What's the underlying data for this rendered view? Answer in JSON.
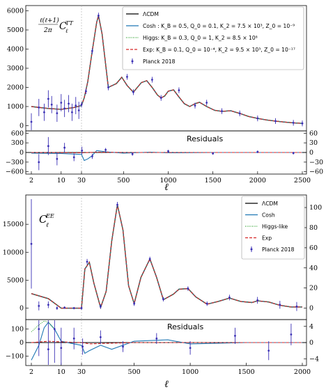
{
  "chart_data": [
    {
      "type": "line",
      "panel": "TT spectrum",
      "ylabel": "ℓ(ℓ+1)/2π C_ℓ^TT",
      "xlabel": "ℓ",
      "ylim": [
        -200,
        6200
      ],
      "yticks": [
        "0",
        "1000",
        "2000",
        "3000",
        "4000",
        "5000",
        "6000"
      ],
      "xticks": [
        "2",
        "10",
        "30",
        "500",
        "1000",
        "1500",
        "2000",
        "2500"
      ],
      "x_axis": "log-scale below ℓ=30, linear ℓ=30–2500",
      "legend_position": "top-right",
      "legend": [
        {
          "label": "ΛCDM",
          "style": "solid",
          "color": "#000000"
        },
        {
          "label": "Cosh : K_B = 0.5, Q_0 = 0.1, K_2 = 7.5 × 10³, Z_0 = 10⁻⁹",
          "style": "solid",
          "color": "#1f77b4"
        },
        {
          "label": "Higgs: K_B = 0.3, Q_0 = 1, K_2 = 8.5 × 10⁸",
          "style": "dotted",
          "color": "#2ca02c"
        },
        {
          "label": "Exp: K_B = 0.1, Q_0 = 10⁻⁴, K_2 = 9.5 × 10³, Z_0 = 10⁻¹⁷",
          "style": "dashed",
          "color": "#d62728"
        },
        {
          "label": "Planck 2018",
          "style": "errorbar",
          "color": "#3a2fb5"
        }
      ],
      "model_curve": {
        "x": [
          2,
          5,
          10,
          20,
          30,
          60,
          100,
          150,
          200,
          220,
          260,
          330,
          420,
          480,
          540,
          610,
          700,
          760,
          820,
          880,
          920,
          960,
          1000,
          1060,
          1120,
          1180,
          1240,
          1300,
          1350,
          1430,
          1520,
          1600,
          1700,
          1800,
          1900,
          2000,
          2100,
          2200,
          2300,
          2400,
          2500
        ],
        "y": [
          1000,
          900,
          850,
          950,
          1050,
          1450,
          2300,
          3900,
          5400,
          5750,
          4800,
          2000,
          2200,
          2530,
          2100,
          1750,
          2250,
          2350,
          2000,
          1600,
          1450,
          1550,
          1800,
          1870,
          1500,
          1150,
          1000,
          1150,
          1220,
          1000,
          800,
          750,
          780,
          640,
          480,
          380,
          300,
          240,
          190,
          150,
          120
        ]
      },
      "data_points": [
        {
          "x": 2,
          "y": 200
        },
        {
          "x": 3,
          "y": 950
        },
        {
          "x": 4,
          "y": 700
        },
        {
          "x": 5,
          "y": 1400
        },
        {
          "x": 6,
          "y": 1100
        },
        {
          "x": 8,
          "y": 650
        },
        {
          "x": 10,
          "y": 1200
        },
        {
          "x": 12,
          "y": 900
        },
        {
          "x": 15,
          "y": 1150
        },
        {
          "x": 18,
          "y": 700
        },
        {
          "x": 22,
          "y": 1050
        },
        {
          "x": 26,
          "y": 800
        },
        {
          "x": 30,
          "y": 1100
        },
        {
          "x": 80,
          "y": 1800
        },
        {
          "x": 150,
          "y": 3900
        },
        {
          "x": 220,
          "y": 5750
        },
        {
          "x": 330,
          "y": 2000
        },
        {
          "x": 540,
          "y": 2550
        },
        {
          "x": 610,
          "y": 1750
        },
        {
          "x": 820,
          "y": 2400
        },
        {
          "x": 920,
          "y": 1450
        },
        {
          "x": 1120,
          "y": 1850
        },
        {
          "x": 1300,
          "y": 1050
        },
        {
          "x": 1430,
          "y": 1200
        },
        {
          "x": 1600,
          "y": 760
        },
        {
          "x": 1800,
          "y": 640
        },
        {
          "x": 2000,
          "y": 380
        },
        {
          "x": 2200,
          "y": 240
        },
        {
          "x": 2400,
          "y": 150
        },
        {
          "x": 2500,
          "y": 120
        }
      ]
    },
    {
      "type": "line",
      "panel": "TT residuals",
      "title": "Residuals",
      "ylim": [
        -650,
        650
      ],
      "yticks_left": [
        "600",
        "300",
        "0",
        "−300",
        "−600"
      ],
      "yticks_right": [
        "60",
        "30",
        "0",
        "−30",
        "−60"
      ],
      "xticks": [
        "2",
        "10",
        "30",
        "500",
        "1000",
        "1500",
        "2000",
        "2500"
      ],
      "cosh_residual": {
        "x": [
          2,
          10,
          30,
          60,
          100,
          150,
          200,
          300,
          500,
          800,
          1000,
          1500,
          2000,
          2500
        ],
        "y": [
          -20,
          -30,
          -60,
          -250,
          -200,
          -100,
          60,
          20,
          -20,
          10,
          -10,
          0,
          0,
          0
        ]
      },
      "exp_residual": {
        "x": [
          2,
          30,
          200,
          500,
          1000,
          2500
        ],
        "y": [
          0,
          -10,
          10,
          0,
          0,
          0
        ]
      },
      "data_points": [
        {
          "x": 3,
          "y": -300,
          "e": 250
        },
        {
          "x": 5,
          "y": 200,
          "e": 280
        },
        {
          "x": 8,
          "y": -200,
          "e": 200
        },
        {
          "x": 12,
          "y": 150,
          "e": 150
        },
        {
          "x": 20,
          "y": -150,
          "e": 120
        },
        {
          "x": 35,
          "y": 60,
          "e": 120
        },
        {
          "x": 150,
          "y": -120,
          "e": 80
        },
        {
          "x": 300,
          "y": 80,
          "e": 60
        },
        {
          "x": 600,
          "y": -50,
          "e": 50
        },
        {
          "x": 1000,
          "y": 40,
          "e": 40
        },
        {
          "x": 1500,
          "y": -30,
          "e": 40
        },
        {
          "x": 2000,
          "y": 20,
          "e": 40
        },
        {
          "x": 2400,
          "y": -20,
          "e": 40
        }
      ]
    },
    {
      "type": "line",
      "panel": "EE spectrum",
      "ylabel": "C_ℓ^EE",
      "xlabel": "ℓ",
      "ylim": [
        -1800,
        20000
      ],
      "yticks": [
        "0",
        "5000",
        "10000",
        "15000"
      ],
      "yticks_right": [
        "0",
        "20",
        "40",
        "60",
        "80",
        "100"
      ],
      "xticks": [
        "2",
        "10",
        "30",
        "500",
        "1000",
        "1500",
        "2000"
      ],
      "legend_position": "top-right",
      "legend": [
        {
          "label": "ΛCDM",
          "style": "solid",
          "color": "#000000"
        },
        {
          "label": "Cosh",
          "style": "solid",
          "color": "#1f77b4"
        },
        {
          "label": "Higgs-like",
          "style": "dotted",
          "color": "#2ca02c"
        },
        {
          "label": "Exp",
          "style": "dashed",
          "color": "#d62728"
        },
        {
          "label": "Planck 2018",
          "style": "errorbar",
          "color": "#3a2fb5"
        }
      ],
      "model_curve": {
        "x": [
          2,
          5,
          10,
          20,
          30,
          60,
          100,
          140,
          200,
          250,
          300,
          350,
          400,
          450,
          500,
          560,
          640,
          700,
          760,
          850,
          900,
          980,
          1050,
          1150,
          1250,
          1350,
          1450,
          1550,
          1600,
          1700,
          1800,
          1900,
          2000
        ],
        "y": [
          2600,
          1700,
          0,
          0,
          0,
          7000,
          8200,
          4500,
          100,
          3000,
          12000,
          18500,
          14000,
          4000,
          800,
          5500,
          8800,
          5500,
          1500,
          2500,
          3400,
          3500,
          2000,
          700,
          1200,
          1800,
          1200,
          1000,
          1300,
          1100,
          500,
          200,
          200
        ]
      },
      "data_points": [
        {
          "x": 2,
          "y": 11500,
          "e": 8000
        },
        {
          "x": 3,
          "y": 400,
          "e": 800
        },
        {
          "x": 5,
          "y": 600,
          "e": 600
        },
        {
          "x": 8,
          "y": 0,
          "e": 300
        },
        {
          "x": 12,
          "y": 100,
          "e": 200
        },
        {
          "x": 20,
          "y": 0,
          "e": 200
        },
        {
          "x": 30,
          "y": 0,
          "e": 300
        },
        {
          "x": 80,
          "y": 8300,
          "e": 500
        },
        {
          "x": 200,
          "y": 300,
          "e": 400
        },
        {
          "x": 350,
          "y": 18500,
          "e": 500
        },
        {
          "x": 500,
          "y": 800,
          "e": 400
        },
        {
          "x": 640,
          "y": 8800,
          "e": 400
        },
        {
          "x": 760,
          "y": 1600,
          "e": 400
        },
        {
          "x": 980,
          "y": 3500,
          "e": 400
        },
        {
          "x": 1150,
          "y": 800,
          "e": 400
        },
        {
          "x": 1350,
          "y": 1900,
          "e": 500
        },
        {
          "x": 1600,
          "y": 1400,
          "e": 600
        },
        {
          "x": 1800,
          "y": 600,
          "e": 700
        },
        {
          "x": 1950,
          "y": 300,
          "e": 800
        }
      ]
    },
    {
      "type": "line",
      "panel": "EE residuals",
      "title": "Residuals",
      "ylim": [
        -160,
        160
      ],
      "yticks_left": [
        "100",
        "0",
        "−100"
      ],
      "yticks_right": [
        "4",
        "0",
        "−4"
      ],
      "xticks": [
        "2",
        "10",
        "30",
        "500",
        "1000",
        "1500",
        "2000"
      ],
      "higgs_residual": {
        "x": [
          2,
          3,
          4,
          5,
          7
        ],
        "y": [
          80,
          130,
          160,
          150,
          100
        ]
      },
      "cosh_residual": {
        "x": [
          2,
          3,
          4,
          5,
          7,
          10,
          20,
          30,
          60,
          100,
          200,
          300,
          500,
          800,
          1000,
          1500,
          2000
        ],
        "y": [
          -130,
          -20,
          110,
          150,
          100,
          10,
          -10,
          -20,
          -80,
          -60,
          -20,
          -50,
          10,
          20,
          -10,
          0,
          0
        ]
      },
      "exp_residual": {
        "x": [
          2,
          5,
          10,
          30,
          100,
          500,
          2000
        ],
        "y": [
          0,
          10,
          5,
          0,
          -10,
          0,
          0
        ]
      },
      "data_points": [
        {
          "x": 3,
          "y": 100,
          "e": 200
        },
        {
          "x": 5,
          "y": -50,
          "e": 300
        },
        {
          "x": 7,
          "y": 100,
          "e": 250
        },
        {
          "x": 10,
          "y": -40,
          "e": 150
        },
        {
          "x": 20,
          "y": 30,
          "e": 80
        },
        {
          "x": 40,
          "y": -30,
          "e": 60
        },
        {
          "x": 200,
          "y": 40,
          "e": 50
        },
        {
          "x": 400,
          "y": -30,
          "e": 40
        },
        {
          "x": 700,
          "y": 30,
          "e": 40
        },
        {
          "x": 1000,
          "y": -40,
          "e": 50
        },
        {
          "x": 1400,
          "y": 50,
          "e": 60
        },
        {
          "x": 1700,
          "y": -60,
          "e": 70
        },
        {
          "x": 1900,
          "y": 60,
          "e": 80
        }
      ]
    }
  ]
}
